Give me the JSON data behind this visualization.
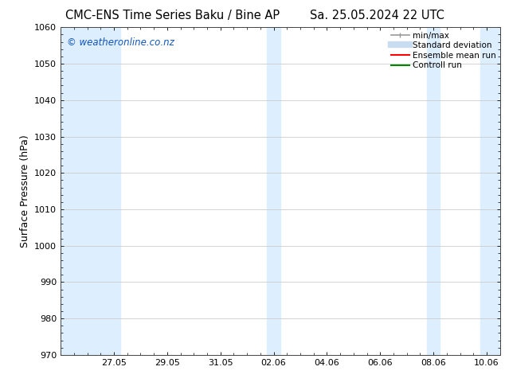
{
  "title_left": "CMC-ENS Time Series Baku / Bine AP",
  "title_right": "Sa. 25.05.2024 22 UTC",
  "ylabel": "Surface Pressure (hPa)",
  "ylim": [
    970,
    1060
  ],
  "yticks": [
    970,
    980,
    990,
    1000,
    1010,
    1020,
    1030,
    1040,
    1050,
    1060
  ],
  "total_days": 16.5,
  "xlim": [
    0,
    16.5
  ],
  "xtick_labels": [
    "27.05",
    "29.05",
    "31.05",
    "02.06",
    "04.06",
    "06.06",
    "08.06",
    "10.06"
  ],
  "xtick_positions_days": [
    2,
    4,
    6,
    8,
    10,
    12,
    14,
    16
  ],
  "shaded_bands": [
    {
      "x_start_day": 0.0,
      "x_end_day": 2.25
    },
    {
      "x_start_day": 7.75,
      "x_end_day": 8.25
    },
    {
      "x_start_day": 13.75,
      "x_end_day": 14.25
    },
    {
      "x_start_day": 15.75,
      "x_end_day": 16.5
    }
  ],
  "band_color": "#ddeeff",
  "background_color": "#ffffff",
  "grid_color": "#cccccc",
  "watermark": "© weatheronline.co.nz",
  "watermark_color": "#1155bb",
  "legend_items": [
    {
      "label": "min/max",
      "color": "#999999",
      "lw": 1.2
    },
    {
      "label": "Standard deviation",
      "color": "#c8ddf0",
      "lw": 6
    },
    {
      "label": "Ensemble mean run",
      "color": "#ff0000",
      "lw": 1.5
    },
    {
      "label": "Controll run",
      "color": "#008800",
      "lw": 1.5
    }
  ],
  "title_fontsize": 10.5,
  "axis_label_fontsize": 9,
  "tick_fontsize": 8,
  "legend_fontsize": 7.5,
  "watermark_fontsize": 8.5
}
